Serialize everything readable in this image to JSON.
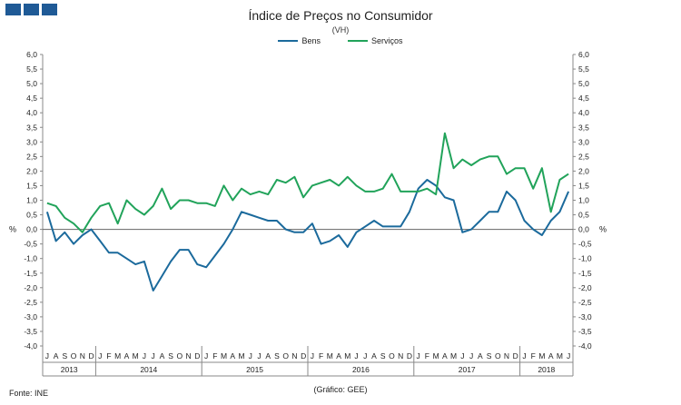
{
  "logo": {
    "color": "#1f5a96"
  },
  "chart_data": {
    "type": "line",
    "title": "Índice de Preços no Consumidor",
    "subtitle": "(VH)",
    "ylabel": "%",
    "ylim": [
      -4.0,
      6.0
    ],
    "ytick_step": 0.5,
    "ytick_labels": [
      "6,0",
      "5,5",
      "5,0",
      "4,5",
      "4,0",
      "3,5",
      "3,0",
      "2,5",
      "2,0",
      "1,5",
      "1,0",
      "0,5",
      "0,0",
      "-0,5",
      "-1,0",
      "-1,5",
      "-2,0",
      "-2,5",
      "-3,0",
      "-3,5",
      "-4,0"
    ],
    "month_labels": [
      "J",
      "A",
      "S",
      "O",
      "N",
      "D",
      "J",
      "F",
      "M",
      "A",
      "M",
      "J",
      "J",
      "A",
      "S",
      "O",
      "N",
      "D",
      "J",
      "F",
      "M",
      "A",
      "M",
      "J",
      "J",
      "A",
      "S",
      "O",
      "N",
      "D",
      "J",
      "F",
      "M",
      "A",
      "M",
      "J",
      "J",
      "A",
      "S",
      "O",
      "N",
      "D",
      "J",
      "F",
      "M",
      "A",
      "M",
      "J",
      "J",
      "A",
      "S",
      "O",
      "N",
      "D",
      "J",
      "F",
      "M",
      "A",
      "M",
      "J"
    ],
    "years": [
      {
        "label": "2013",
        "start": 0,
        "count": 6
      },
      {
        "label": "2014",
        "start": 6,
        "count": 12
      },
      {
        "label": "2015",
        "start": 18,
        "count": 12
      },
      {
        "label": "2016",
        "start": 30,
        "count": 12
      },
      {
        "label": "2017",
        "start": 42,
        "count": 12
      },
      {
        "label": "2018",
        "start": 54,
        "count": 6
      }
    ],
    "series": [
      {
        "name": "Bens",
        "color": "#1b6a9c",
        "values": [
          0.6,
          -0.4,
          -0.1,
          -0.5,
          -0.2,
          0.0,
          -0.4,
          -0.8,
          -0.8,
          -1.0,
          -1.2,
          -1.1,
          -2.1,
          -1.6,
          -1.1,
          -0.7,
          -0.7,
          -1.2,
          -1.3,
          -0.9,
          -0.5,
          0.0,
          0.6,
          0.5,
          0.4,
          0.3,
          0.3,
          0.0,
          -0.1,
          -0.1,
          0.2,
          -0.5,
          -0.4,
          -0.2,
          -0.6,
          -0.1,
          0.1,
          0.3,
          0.1,
          0.1,
          0.1,
          0.6,
          1.4,
          1.7,
          1.5,
          1.1,
          1.0,
          -0.1,
          0.0,
          0.3,
          0.6,
          0.6,
          1.3,
          1.0,
          0.3,
          0.0,
          -0.2,
          0.3,
          0.6,
          1.3
        ]
      },
      {
        "name": "Serviços",
        "color": "#21a35a",
        "values": [
          0.9,
          0.8,
          0.4,
          0.2,
          -0.1,
          0.4,
          0.8,
          0.9,
          0.2,
          1.0,
          0.7,
          0.5,
          0.8,
          1.4,
          0.7,
          1.0,
          1.0,
          0.9,
          0.9,
          0.8,
          1.5,
          1.0,
          1.4,
          1.2,
          1.3,
          1.2,
          1.7,
          1.6,
          1.8,
          1.1,
          1.5,
          1.6,
          1.7,
          1.5,
          1.8,
          1.5,
          1.3,
          1.3,
          1.4,
          1.9,
          1.3,
          1.3,
          1.3,
          1.4,
          1.2,
          3.3,
          2.1,
          2.4,
          2.2,
          2.4,
          2.5,
          2.5,
          1.9,
          2.1,
          2.1,
          1.4,
          2.1,
          0.6,
          1.7,
          1.9
        ]
      }
    ]
  },
  "footer": {
    "source": "Fonte: INE",
    "credit": "(Gráfico: GEE)"
  }
}
